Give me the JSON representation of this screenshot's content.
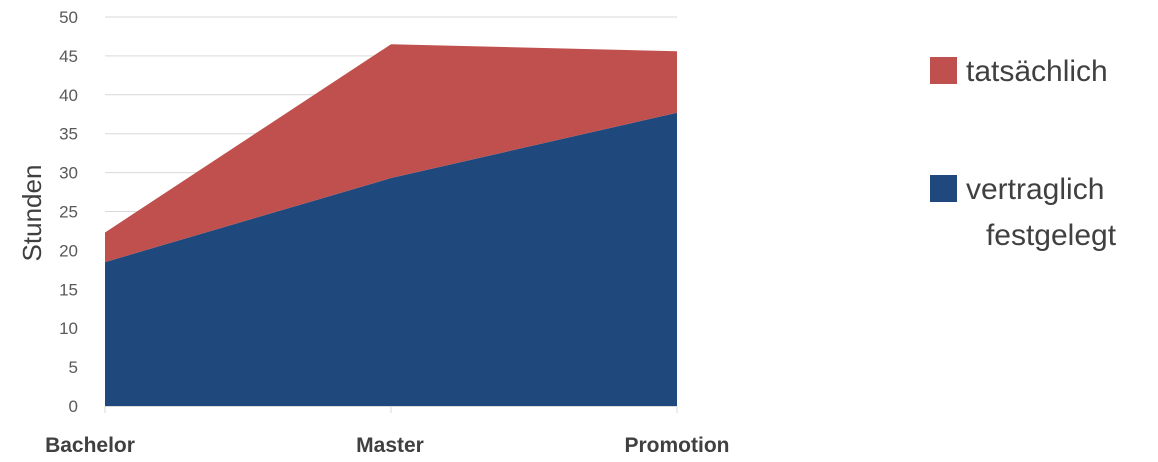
{
  "chart_data": {
    "type": "area",
    "stacked": true,
    "categories": [
      "Bachelor",
      "Master",
      "Promotion"
    ],
    "series": [
      {
        "name": "vertraglich festgelegt",
        "values": [
          18.5,
          29.3,
          37.7
        ],
        "color": "#1f497d"
      },
      {
        "name": "tatsächlich",
        "values": [
          3.8,
          17.2,
          7.9
        ],
        "color": "#c0504d"
      }
    ],
    "totals": [
      22.3,
      46.5,
      45.6
    ],
    "xlabel": "",
    "ylabel": "Stunden",
    "ylim": [
      0,
      50
    ],
    "yticks": [
      0,
      5,
      10,
      15,
      20,
      25,
      30,
      35,
      40,
      45,
      50
    ],
    "grid": true,
    "legend_position": "right",
    "legend_entries": [
      {
        "series": 1,
        "lines": [
          "tatsächlich"
        ]
      },
      {
        "series": 0,
        "lines": [
          "vertraglich",
          "festgelegt"
        ]
      }
    ]
  }
}
